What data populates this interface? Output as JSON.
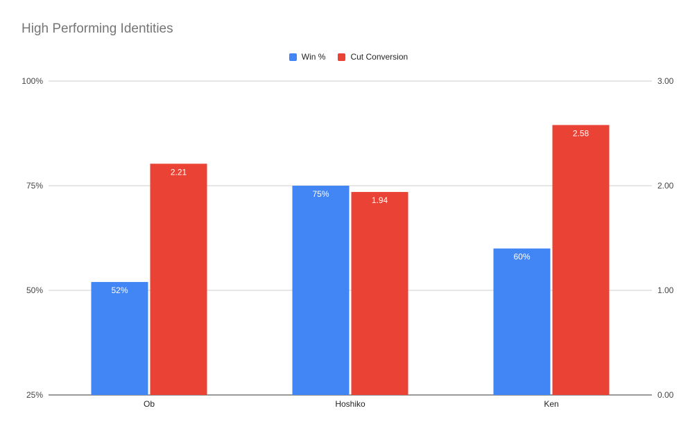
{
  "chart_data": {
    "type": "bar",
    "title": "High Performing Identities",
    "categories": [
      "Ob",
      "Hoshiko",
      "Ken"
    ],
    "series": [
      {
        "name": "Win %",
        "axis": "left",
        "values": [
          0.52,
          0.75,
          0.6
        ],
        "labels": [
          "52%",
          "75%",
          "60%"
        ],
        "color": "#4285f4"
      },
      {
        "name": "Cut Conversion",
        "axis": "right",
        "values": [
          2.21,
          1.94,
          2.58
        ],
        "labels": [
          "2.21",
          "1.94",
          "2.58"
        ],
        "color": "#ea4335"
      }
    ],
    "y_left": {
      "min": 0.25,
      "max": 1.0,
      "ticks": [
        0.25,
        0.5,
        0.75,
        1.0
      ],
      "tick_labels": [
        "25%",
        "50%",
        "75%",
        "100%"
      ]
    },
    "y_right": {
      "min": 0,
      "max": 3,
      "ticks": [
        0,
        1,
        2,
        3
      ],
      "tick_labels": [
        "0.00",
        "1.00",
        "2.00",
        "3.00"
      ]
    },
    "grid": true,
    "legend_position": "top"
  }
}
